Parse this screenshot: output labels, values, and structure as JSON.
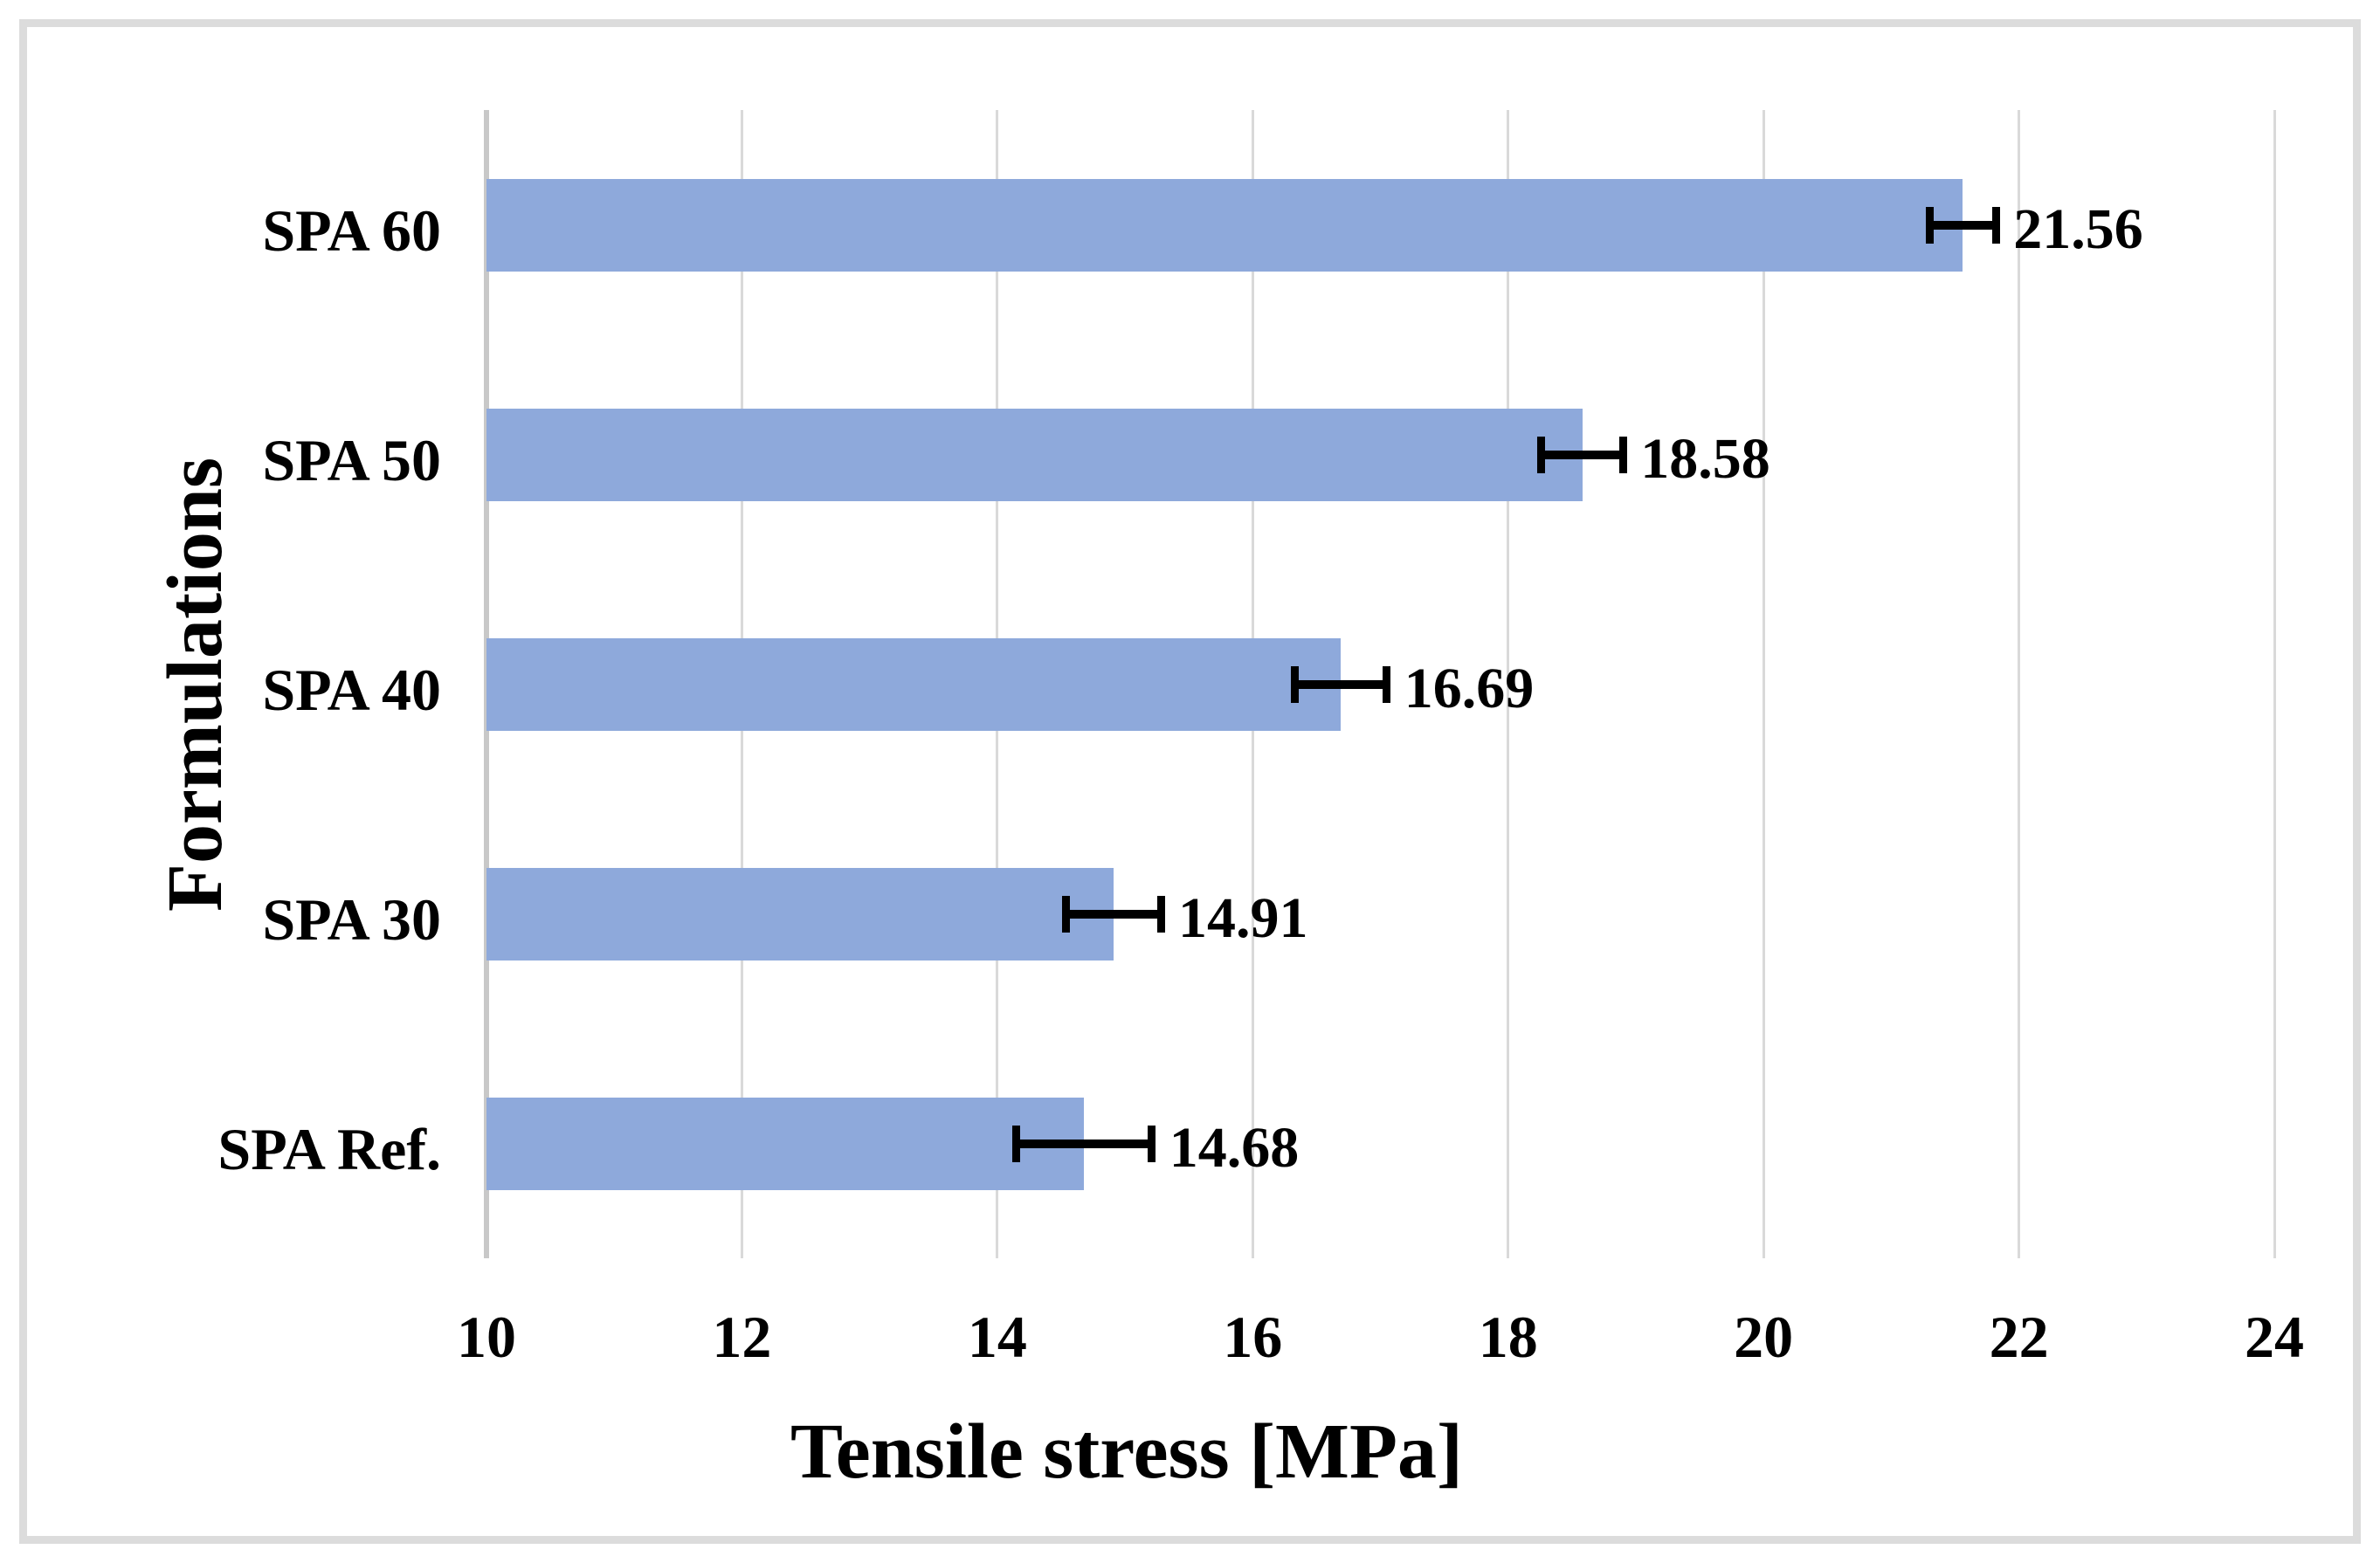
{
  "chart_data": {
    "type": "bar",
    "orientation": "horizontal",
    "title": "",
    "xlabel": "Tensile stress [MPa]",
    "ylabel": "Formulations",
    "categories": [
      "SPA 60",
      "SPA 50",
      "SPA 40",
      "SPA 30",
      "SPA Ref."
    ],
    "values": [
      21.56,
      18.58,
      16.69,
      14.91,
      14.68
    ],
    "data_labels": [
      "21.56",
      "18.58",
      "16.69",
      "14.91",
      "14.68"
    ],
    "error_bars_plus_minus": [
      0.26,
      0.32,
      0.36,
      0.37,
      0.53
    ],
    "xlim": [
      10,
      24
    ],
    "x_ticks": [
      "10",
      "12",
      "14",
      "16",
      "18",
      "20",
      "22",
      "24"
    ],
    "x_tick_values": [
      10,
      12,
      14,
      16,
      18,
      20,
      22,
      24
    ],
    "grid": true,
    "legend": false,
    "colors": {
      "bar": "#8ea9db",
      "gridline": "#d9d9d9",
      "axis_line": "#c8c8c8",
      "error_bar": "#000000",
      "text": "#000000",
      "frame_border": "#dcdcdc",
      "background": "#ffffff"
    }
  }
}
